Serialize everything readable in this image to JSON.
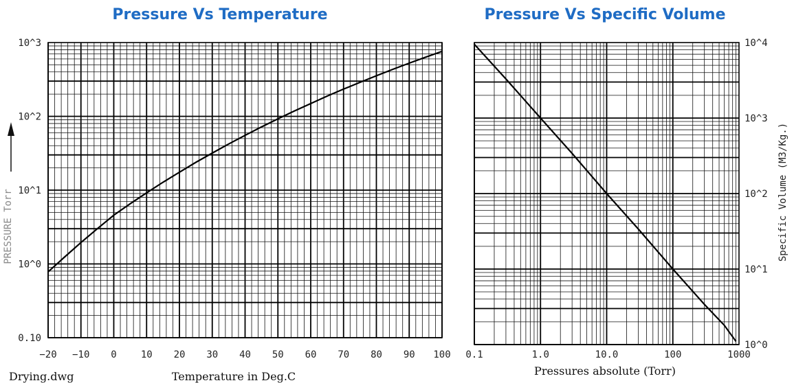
{
  "chart_data": [
    {
      "type": "line",
      "title": "Pressure Vs Temperature",
      "xlabel": "Temperature in Deg.C",
      "ylabel": "PRESSURE  Torr",
      "footer_left": "Drying.dwg",
      "yscale": "log",
      "xlim": [
        -20,
        100
      ],
      "ylim": [
        0.1,
        1000
      ],
      "x_ticks": [
        "−20",
        "−10",
        "0",
        "10",
        "20",
        "30",
        "40",
        "50",
        "60",
        "70",
        "80",
        "90",
        "100"
      ],
      "y_ticks": [
        "0.10",
        "10^0",
        "10^1",
        "10^2",
        "10^3"
      ],
      "grid": true,
      "series": [
        {
          "x": [
            -20,
            -15,
            -10,
            -5,
            0,
            5,
            10,
            15,
            20,
            25,
            30,
            35,
            40,
            45,
            50,
            55,
            60,
            65,
            70,
            75,
            80,
            85,
            90,
            95,
            100
          ],
          "y": [
            0.78,
            1.24,
            1.95,
            3.0,
            4.58,
            6.54,
            9.2,
            12.8,
            17.5,
            23.8,
            31.8,
            42.2,
            55.3,
            71.9,
            92.5,
            118,
            149,
            188,
            234,
            289,
            355,
            434,
            526,
            634,
            760
          ]
        }
      ]
    },
    {
      "type": "line",
      "title": "Pressure Vs Specific Volume",
      "xlabel": "Pressures absolute (Torr)",
      "ylabel": "Specific Volume  (M3/Kg.)",
      "xscale": "log",
      "yscale": "log",
      "xlim": [
        0.1,
        1000
      ],
      "ylim": [
        1,
        10000
      ],
      "x_ticks": [
        "0.1",
        "1.0",
        "10.0",
        "100",
        "1000"
      ],
      "y_ticks": [
        "10^0",
        "10^1",
        "10^2",
        "10^3",
        "10^4"
      ],
      "grid": true,
      "series": [
        {
          "x": [
            0.1,
            0.3,
            1,
            3,
            10,
            30,
            100,
            300,
            600,
            900
          ],
          "y": [
            9500,
            3300,
            1000,
            340,
            100,
            34,
            10,
            3.4,
            1.8,
            1.1
          ]
        }
      ]
    }
  ]
}
